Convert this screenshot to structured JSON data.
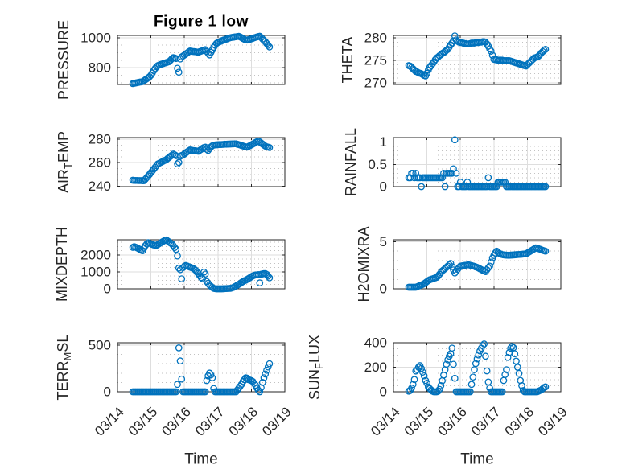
{
  "figure": {
    "background": "#ffffff",
    "marker_color": "#0072BD",
    "axes_color": "#262626"
  },
  "chart_data": [
    {
      "id": "pressure",
      "type": "scatter",
      "title": "Figure 1 low",
      "ylabel": [
        {
          "text": "PRESSURE"
        }
      ],
      "x_origin": "03/14 00:00",
      "x_unit": "hours",
      "x_start_hours": 11,
      "x_step_hours": 1,
      "xlim_hours": [
        0,
        120
      ],
      "xticks_hours": [
        0,
        24,
        48,
        72,
        96,
        120
      ],
      "ylim": [
        688,
        1015
      ],
      "yticks": [
        800,
        1000
      ],
      "ytick_labels": [
        "800",
        "1000"
      ],
      "yminor_step": 50,
      "grid": true,
      "marker": "o",
      "y": [
        694,
        696,
        698,
        700,
        702,
        704,
        705,
        707,
        713,
        720,
        726,
        733,
        740,
        750,
        765,
        780,
        794,
        806,
        814,
        818,
        822,
        825,
        828,
        831,
        834,
        837,
        840,
        849,
        859,
        867,
        865,
        861,
        796,
        770,
        858,
        872,
        878,
        884,
        891,
        898,
        905,
        911,
        909,
        908,
        907,
        906,
        904,
        903,
        907,
        910,
        914,
        917,
        920,
        908,
        897,
        885,
        902,
        918,
        936,
        950,
        962,
        968,
        972,
        976,
        980,
        984,
        987,
        990,
        993,
        997,
        1000,
        1002,
        1003,
        1005,
        1006,
        1008,
        1009,
        1005,
        1000,
        994,
        989,
        985,
        984,
        987,
        989,
        992,
        995,
        999,
        1002,
        1005,
        1008,
        1010,
        1001,
        991,
        982,
        973,
        961,
        949,
        938
      ]
    },
    {
      "id": "theta",
      "type": "scatter",
      "ylabel": [
        {
          "text": "THETA"
        }
      ],
      "x_origin": "03/14 00:00",
      "x_unit": "hours",
      "x_start_hours": 11,
      "x_step_hours": 1,
      "xlim_hours": [
        0,
        120
      ],
      "xticks_hours": [
        0,
        24,
        48,
        72,
        96,
        120
      ],
      "ylim": [
        269.6,
        280.5
      ],
      "yticks": [
        270,
        275,
        280
      ],
      "ytick_labels": [
        "270",
        "275",
        "280"
      ],
      "yminor_step": 1,
      "grid": true,
      "marker": "o",
      "y": [
        273.8,
        273.7,
        273.4,
        273.1,
        272.8,
        272.5,
        272.4,
        272.2,
        272.1,
        272.0,
        271.8,
        271.6,
        271.5,
        272.1,
        272.8,
        273.4,
        273.8,
        274.2,
        274.6,
        275.1,
        275.5,
        275.7,
        276.0,
        276.2,
        276.5,
        276.7,
        276.9,
        277.2,
        277.4,
        277.9,
        278.4,
        278.8,
        279.3,
        280.4,
        279.5,
        279.2,
        279.0,
        278.9,
        278.9,
        278.8,
        278.7,
        278.7,
        278.6,
        278.6,
        278.7,
        278.8,
        278.8,
        278.8,
        278.9,
        278.9,
        278.9,
        279.0,
        279.0,
        279.1,
        279.1,
        279.0,
        278.6,
        278.1,
        277.5,
        277.0,
        276.1,
        275.2,
        275.1,
        275.1,
        275.0,
        275.0,
        275.0,
        275.0,
        274.9,
        274.9,
        274.9,
        274.9,
        274.9,
        274.8,
        274.7,
        274.6,
        274.5,
        274.4,
        274.3,
        274.2,
        274.1,
        274.0,
        273.9,
        273.8,
        273.7,
        274.0,
        274.3,
        274.6,
        274.9,
        275.2,
        275.5,
        275.6,
        275.7,
        275.9,
        276.2,
        276.6,
        276.9,
        277.2,
        277.4
      ]
    },
    {
      "id": "air-temp",
      "type": "scatter",
      "ylabel": [
        {
          "text": "AIR"
        },
        {
          "text": "T",
          "sub": true
        },
        {
          "text": "EMP"
        }
      ],
      "x_origin": "03/14 00:00",
      "x_unit": "hours",
      "x_start_hours": 11,
      "x_step_hours": 1,
      "xlim_hours": [
        0,
        120
      ],
      "xticks_hours": [
        0,
        24,
        48,
        72,
        96,
        120
      ],
      "ylim": [
        239.5,
        281.5
      ],
      "yticks": [
        240,
        260,
        280
      ],
      "ytick_labels": [
        "240",
        "260",
        "280"
      ],
      "yminor_step": 5,
      "grid": true,
      "marker": "o",
      "y": [
        245.0,
        244.8,
        244.8,
        244.8,
        244.7,
        244.7,
        244.7,
        244.6,
        244.6,
        245.9,
        247.3,
        248.7,
        250.0,
        251.5,
        253.0,
        254.5,
        256.0,
        257.5,
        259.0,
        259.6,
        260.2,
        260.8,
        261.4,
        262.0,
        262.6,
        263.6,
        264.5,
        265.5,
        266.4,
        267.4,
        266.8,
        266.0,
        259.0,
        260.2,
        265.5,
        266.2,
        266.6,
        267.5,
        268.4,
        269.3,
        270.1,
        270.9,
        270.7,
        270.5,
        270.3,
        270.2,
        270.0,
        269.8,
        270.6,
        271.4,
        272.3,
        273.0,
        273.3,
        271.5,
        270.5,
        272.0,
        273.5,
        274.5,
        275.0,
        275.2,
        275.3,
        275.4,
        275.5,
        275.5,
        275.6,
        275.7,
        275.8,
        275.8,
        275.9,
        276.0,
        276.0,
        276.1,
        276.1,
        276.2,
        276.2,
        275.8,
        275.5,
        275.1,
        274.7,
        274.3,
        273.9,
        273.6,
        273.3,
        274.0,
        274.6,
        275.3,
        275.9,
        276.6,
        277.3,
        278.0,
        278.6,
        277.8,
        276.9,
        276.0,
        275.0,
        274.2,
        273.6,
        273.3,
        273.0
      ]
    },
    {
      "id": "rainfall",
      "type": "scatter",
      "ylabel": [
        {
          "text": "RAINFALL"
        }
      ],
      "x_origin": "03/14 00:00",
      "x_unit": "hours",
      "x_start_hours": 11,
      "x_step_hours": 1,
      "xlim_hours": [
        0,
        120
      ],
      "xticks_hours": [
        0,
        24,
        48,
        72,
        96,
        120
      ],
      "ylim": [
        0,
        1.1
      ],
      "yticks": [
        0,
        0.5,
        1
      ],
      "ytick_labels": [
        "0",
        "0.5",
        "1"
      ],
      "yminor_step": 0.1,
      "grid": true,
      "marker": "o",
      "y": [
        0.2,
        0.2,
        0.3,
        0.3,
        0.2,
        0.3,
        0.2,
        0.2,
        0.2,
        0,
        0.2,
        0.2,
        0.2,
        0.2,
        0.2,
        0.2,
        0.2,
        0.2,
        0.2,
        0.2,
        0.2,
        0.2,
        0.2,
        0.2,
        0.2,
        0.3,
        0,
        0.3,
        0.3,
        0.3,
        0.3,
        0.3,
        0.4,
        1.05,
        0.3,
        0,
        0,
        0.1,
        0,
        0,
        0,
        0,
        0.1,
        0,
        0,
        0,
        0,
        0,
        0,
        0,
        0,
        0,
        0,
        0,
        0,
        0,
        0,
        0.2,
        0,
        0,
        0,
        0,
        0,
        0,
        0.1,
        0.1,
        0.1,
        0.1,
        0.1,
        0.1,
        0,
        0,
        0,
        0,
        0,
        0,
        0,
        0,
        0,
        0,
        0,
        0,
        0,
        0,
        0,
        0,
        0,
        0,
        0,
        0,
        0,
        0,
        0,
        0,
        0,
        0,
        0,
        0,
        0
      ]
    },
    {
      "id": "mixdepth",
      "type": "scatter",
      "ylabel": [
        {
          "text": "MIXDEPTH"
        }
      ],
      "x_origin": "03/14 00:00",
      "x_unit": "hours",
      "x_start_hours": 11,
      "x_step_hours": 1,
      "xlim_hours": [
        0,
        120
      ],
      "xticks_hours": [
        0,
        24,
        48,
        72,
        96,
        120
      ],
      "ylim": [
        0,
        2900
      ],
      "yticks": [
        0,
        1000,
        2000
      ],
      "ytick_labels": [
        "0",
        "1000",
        "2000"
      ],
      "yminor_step": 250,
      "grid": true,
      "marker": "o",
      "y": [
        2450,
        2490,
        2460,
        2420,
        2380,
        2330,
        2280,
        2250,
        2400,
        2550,
        2650,
        2730,
        2700,
        2660,
        2620,
        2590,
        2570,
        2570,
        2620,
        2670,
        2720,
        2770,
        2820,
        2860,
        2890,
        2830,
        2770,
        2710,
        2660,
        2550,
        2440,
        2330,
        1940,
        1220,
        1130,
        590,
        1250,
        1320,
        1380,
        1350,
        1310,
        1280,
        1250,
        1220,
        1160,
        1100,
        985,
        900,
        780,
        666,
        600,
        985,
        870,
        430,
        330,
        230,
        150,
        80,
        30,
        10,
        0,
        0,
        0,
        0,
        0,
        5,
        10,
        15,
        20,
        25,
        30,
        50,
        80,
        120,
        170,
        220,
        270,
        320,
        380,
        430,
        480,
        510,
        560,
        610,
        660,
        720,
        760,
        800,
        820,
        830,
        840,
        350,
        860,
        880,
        900,
        900,
        850,
        750,
        650
      ]
    },
    {
      "id": "h2omixra",
      "type": "scatter",
      "ylabel": [
        {
          "text": "H2OMIXRA"
        }
      ],
      "x_origin": "03/14 00:00",
      "x_unit": "hours",
      "x_start_hours": 11,
      "x_step_hours": 1,
      "xlim_hours": [
        0,
        120
      ],
      "xticks_hours": [
        0,
        24,
        48,
        72,
        96,
        120
      ],
      "ylim": [
        0,
        5.2
      ],
      "yticks": [
        0,
        5
      ],
      "ytick_labels": [
        "0",
        "5"
      ],
      "yminor_step": 1,
      "grid": true,
      "marker": "o",
      "y": [
        0.17,
        0.17,
        0.17,
        0.17,
        0.17,
        0.17,
        0.23,
        0.29,
        0.35,
        0.41,
        0.47,
        0.55,
        0.65,
        0.76,
        0.87,
        0.96,
        1.01,
        1.06,
        1.11,
        1.16,
        1.21,
        1.36,
        1.54,
        1.72,
        1.9,
        2.02,
        2.15,
        2.28,
        2.41,
        2.55,
        2.69,
        2.35,
        2.0,
        1.68,
        1.87,
        2.06,
        2.25,
        2.4,
        2.43,
        2.45,
        2.48,
        2.5,
        2.53,
        2.54,
        2.5,
        2.46,
        2.42,
        2.38,
        2.32,
        2.27,
        2.2,
        2.12,
        2.04,
        1.96,
        1.89,
        1.82,
        2.02,
        2.22,
        2.4,
        2.83,
        3.26,
        3.53,
        3.8,
        3.99,
        3.85,
        3.75,
        3.68,
        3.63,
        3.6,
        3.58,
        3.57,
        3.56,
        3.56,
        3.57,
        3.58,
        3.59,
        3.6,
        3.62,
        3.63,
        3.64,
        3.65,
        3.66,
        3.68,
        3.69,
        3.7,
        3.79,
        3.88,
        3.97,
        4.06,
        4.15,
        4.24,
        4.34,
        4.3,
        4.25,
        4.2,
        4.14,
        4.08,
        4.03,
        3.99
      ]
    },
    {
      "id": "terr-msl",
      "type": "scatter",
      "ylabel": [
        {
          "text": "TERR"
        },
        {
          "text": "M",
          "sub": true
        },
        {
          "text": "SL"
        }
      ],
      "xlabel": "Time",
      "x_origin": "03/14 00:00",
      "x_unit": "hours",
      "x_start_hours": 11,
      "x_step_hours": 1,
      "xlim_hours": [
        0,
        120
      ],
      "xticks_hours": [
        0,
        24,
        48,
        72,
        96,
        120
      ],
      "xtick_labels": [
        "03/14",
        "03/15",
        "03/16",
        "03/17",
        "03/18",
        "03/19"
      ],
      "ylim": [
        0,
        525
      ],
      "yticks": [
        0,
        500
      ],
      "ytick_labels": [
        "0",
        "500"
      ],
      "yminor_step": 100,
      "grid": true,
      "marker": "o",
      "y": [
        0,
        0,
        0,
        0,
        0,
        0,
        0,
        0,
        0,
        0,
        0,
        0,
        0,
        0,
        0,
        0,
        0,
        0,
        0,
        0,
        0,
        0,
        0,
        0,
        0,
        0,
        0,
        0,
        0,
        0,
        0,
        0,
        79,
        470,
        330,
        136,
        0,
        0,
        0,
        0,
        0,
        0,
        0,
        0,
        0,
        0,
        0,
        0,
        0,
        0,
        0,
        0,
        0,
        120,
        170,
        200,
        180,
        150,
        35,
        0,
        0,
        0,
        0,
        0,
        0,
        0,
        0,
        0,
        0,
        0,
        0,
        0,
        0,
        0,
        0,
        20,
        40,
        60,
        80,
        110,
        130,
        150,
        145,
        130,
        125,
        120,
        110,
        90,
        70,
        40,
        15,
        0,
        45,
        100,
        150,
        190,
        230,
        265,
        300
      ]
    },
    {
      "id": "sun-flux",
      "type": "scatter",
      "ylabel": [
        {
          "text": "SUN"
        },
        {
          "text": "F",
          "sub": true
        },
        {
          "text": "LUX"
        }
      ],
      "xlabel": "Time",
      "x_origin": "03/14 00:00",
      "x_unit": "hours",
      "x_start_hours": 11,
      "x_step_hours": 1,
      "xlim_hours": [
        0,
        120
      ],
      "xticks_hours": [
        0,
        24,
        48,
        72,
        96,
        120
      ],
      "xtick_labels": [
        "03/14",
        "03/15",
        "03/16",
        "03/17",
        "03/18",
        "03/19"
      ],
      "ylim": [
        0,
        400
      ],
      "yticks": [
        0,
        200,
        400
      ],
      "ytick_labels": [
        "0",
        "200",
        "400"
      ],
      "yminor_step": 50,
      "grid": true,
      "marker": "o",
      "y": [
        5,
        10,
        30,
        60,
        100,
        169,
        180,
        200,
        213,
        190,
        160,
        130,
        92,
        70,
        40,
        26,
        15,
        5,
        0,
        0,
        0,
        5,
        20,
        50,
        90,
        136,
        180,
        224,
        260,
        290,
        310,
        356,
        224,
        110,
        0,
        0,
        0,
        0,
        0,
        0,
        0,
        0,
        0,
        0,
        0,
        60,
        120,
        180,
        230,
        268,
        300,
        333,
        355,
        378,
        390,
        290,
        170,
        80,
        30,
        0,
        0,
        0,
        0,
        0,
        0,
        0,
        0,
        0,
        92,
        140,
        180,
        280,
        320,
        355,
        370,
        360,
        310,
        250,
        200,
        150,
        92,
        50,
        10,
        0,
        0,
        0,
        0,
        0,
        0,
        0,
        0,
        0,
        0,
        5,
        10,
        15,
        25,
        35,
        40
      ]
    }
  ]
}
